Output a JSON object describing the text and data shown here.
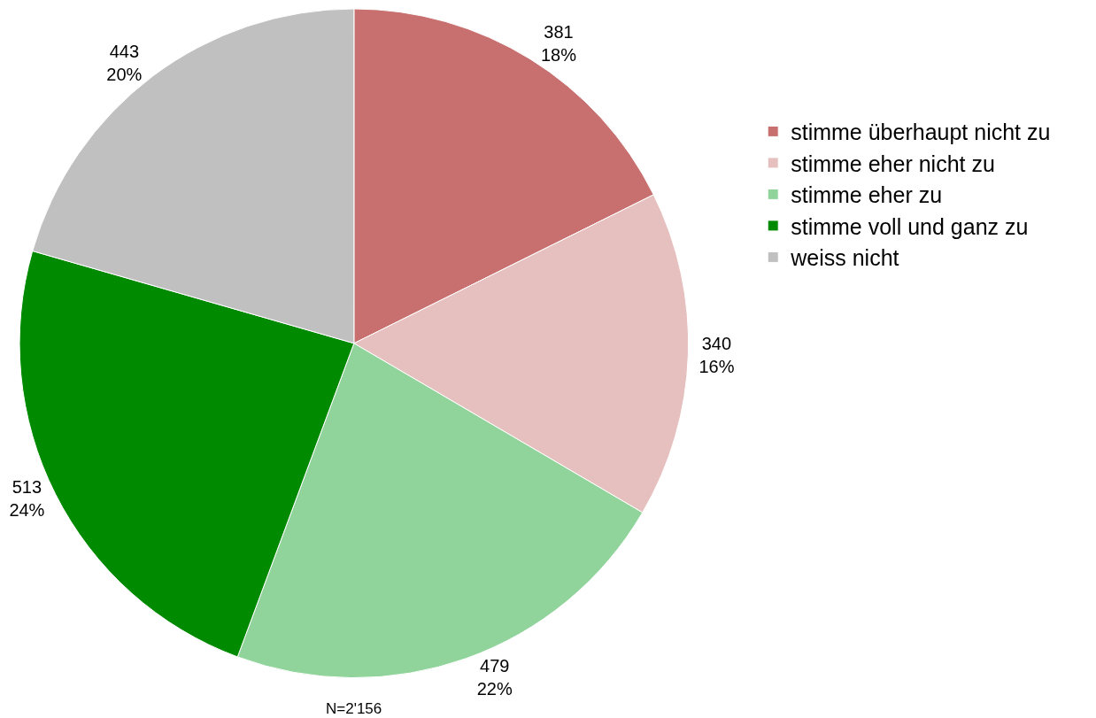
{
  "chart_data": {
    "type": "pie",
    "categories": [
      "stimme überhaupt nicht zu",
      "stimme eher nicht zu",
      "stimme eher zu",
      "stimme voll und ganz zu",
      "weiss nicht"
    ],
    "values": [
      381,
      340,
      479,
      513,
      443
    ],
    "colors": [
      "#c87070",
      "#e6c0bf",
      "#90d49c",
      "#008a00",
      "#c0c0c0"
    ],
    "value_labels": [
      "381\n18%",
      "340\n16%",
      "479\n22%",
      "513\n24%",
      "443\n20%"
    ],
    "annotations": [
      "N=2'156"
    ],
    "legend": "right"
  }
}
